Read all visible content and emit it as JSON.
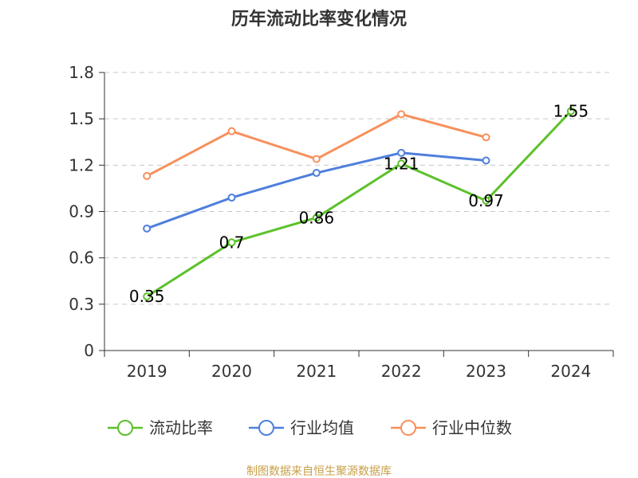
{
  "chart_data": {
    "type": "line",
    "title": "历年流动比率变化情况",
    "categories": [
      "2019",
      "2020",
      "2021",
      "2022",
      "2023",
      "2024"
    ],
    "ylim": [
      0,
      1.8
    ],
    "yticks": [
      "0",
      "0.3",
      "0.6",
      "0.9",
      "1.2",
      "1.5",
      "1.8"
    ],
    "grid": true,
    "legend_position": "bottom",
    "series": [
      {
        "name": "流动比率",
        "color": "#5cc12a",
        "show_labels": true,
        "values": [
          0.35,
          0.7,
          0.86,
          1.21,
          0.97,
          1.55
        ],
        "labels": [
          "0.35",
          "0.7",
          "0.86",
          "1.21",
          "0.97",
          "1.55"
        ]
      },
      {
        "name": "行业均值",
        "color": "#4f7fdc",
        "show_labels": false,
        "values": [
          0.79,
          0.99,
          1.15,
          1.28,
          1.23,
          null
        ]
      },
      {
        "name": "行业中位数",
        "color": "#f7905c",
        "show_labels": false,
        "values": [
          1.13,
          1.42,
          1.24,
          1.53,
          1.38,
          null
        ]
      }
    ]
  },
  "source_text": "制图数据来自恒生聚源数据库",
  "source_color": "#c8a04a"
}
